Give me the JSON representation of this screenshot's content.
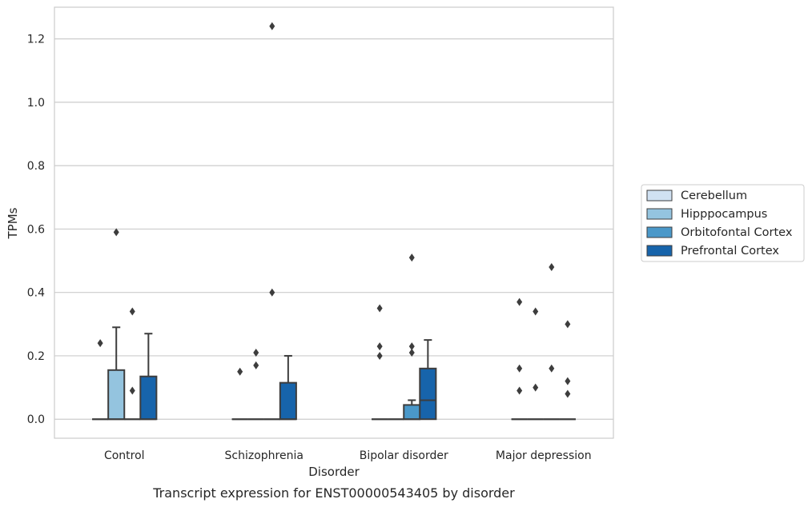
{
  "chart_data": {
    "type": "box",
    "title": "",
    "caption": "Transcript expression for ENST00000543405 by disorder",
    "xlabel": "Disorder",
    "ylabel": "TPMs",
    "ylim": [
      -0.06,
      1.3
    ],
    "yticks": [
      0.0,
      0.2,
      0.4,
      0.6,
      0.8,
      1.0,
      1.2
    ],
    "ytick_labels": [
      "0.0",
      "0.2",
      "0.4",
      "0.6",
      "0.8",
      "1.0",
      "1.2"
    ],
    "categories": [
      "Control",
      "Schizophrenia",
      "Bipolar disorder",
      "Major depression"
    ],
    "grid": "horizontal",
    "legend_position": "right",
    "series": [
      {
        "name": "Cerebellum",
        "color": "#d0e1f2",
        "boxes": [
          {
            "q1": 0,
            "median": 0,
            "q3": 0,
            "whisker_low": 0,
            "whisker_high": 0,
            "outliers": [
              0.24
            ]
          },
          {
            "q1": 0,
            "median": 0,
            "q3": 0,
            "whisker_low": 0,
            "whisker_high": 0,
            "outliers": [
              0.15
            ]
          },
          {
            "q1": 0,
            "median": 0,
            "q3": 0,
            "whisker_low": 0,
            "whisker_high": 0,
            "outliers": [
              0.35,
              0.23,
              0.2
            ]
          },
          {
            "q1": 0,
            "median": 0,
            "q3": 0,
            "whisker_low": 0,
            "whisker_high": 0,
            "outliers": [
              0.37,
              0.16,
              0.09
            ]
          }
        ]
      },
      {
        "name": "Hipppocampus",
        "color": "#94c4df",
        "boxes": [
          {
            "q1": 0,
            "median": 0,
            "q3": 0.155,
            "whisker_low": 0,
            "whisker_high": 0.29,
            "outliers": [
              0.59
            ]
          },
          {
            "q1": 0,
            "median": 0,
            "q3": 0,
            "whisker_low": 0,
            "whisker_high": 0,
            "outliers": [
              0.21,
              0.17
            ]
          },
          {
            "q1": 0,
            "median": 0,
            "q3": 0,
            "whisker_low": 0,
            "whisker_high": 0,
            "outliers": []
          },
          {
            "q1": 0,
            "median": 0,
            "q3": 0,
            "whisker_low": 0,
            "whisker_high": 0,
            "outliers": [
              0.34,
              0.1
            ]
          }
        ]
      },
      {
        "name": "Orbitofontal Cortex",
        "color": "#4a98c9",
        "boxes": [
          {
            "q1": 0,
            "median": 0,
            "q3": 0,
            "whisker_low": 0,
            "whisker_high": 0,
            "outliers": [
              0.34,
              0.09
            ]
          },
          {
            "q1": 0,
            "median": 0,
            "q3": 0,
            "whisker_low": 0,
            "whisker_high": 0,
            "outliers": [
              1.24,
              0.4
            ]
          },
          {
            "q1": 0,
            "median": 0,
            "q3": 0.045,
            "whisker_low": 0,
            "whisker_high": 0.06,
            "outliers": [
              0.51,
              0.23,
              0.21
            ]
          },
          {
            "q1": 0,
            "median": 0,
            "q3": 0,
            "whisker_low": 0,
            "whisker_high": 0,
            "outliers": [
              0.48,
              0.16
            ]
          }
        ]
      },
      {
        "name": "Prefrontal Cortex",
        "color": "#1764ab",
        "boxes": [
          {
            "q1": 0,
            "median": 0,
            "q3": 0.135,
            "whisker_low": 0,
            "whisker_high": 0.27,
            "outliers": []
          },
          {
            "q1": 0,
            "median": 0,
            "q3": 0.115,
            "whisker_low": 0,
            "whisker_high": 0.2,
            "outliers": []
          },
          {
            "q1": 0,
            "median": 0.06,
            "q3": 0.16,
            "whisker_low": 0,
            "whisker_high": 0.25,
            "outliers": []
          },
          {
            "q1": 0,
            "median": 0,
            "q3": 0,
            "whisker_low": 0,
            "whisker_high": 0,
            "outliers": [
              0.3,
              0.12,
              0.08
            ]
          }
        ]
      }
    ]
  }
}
